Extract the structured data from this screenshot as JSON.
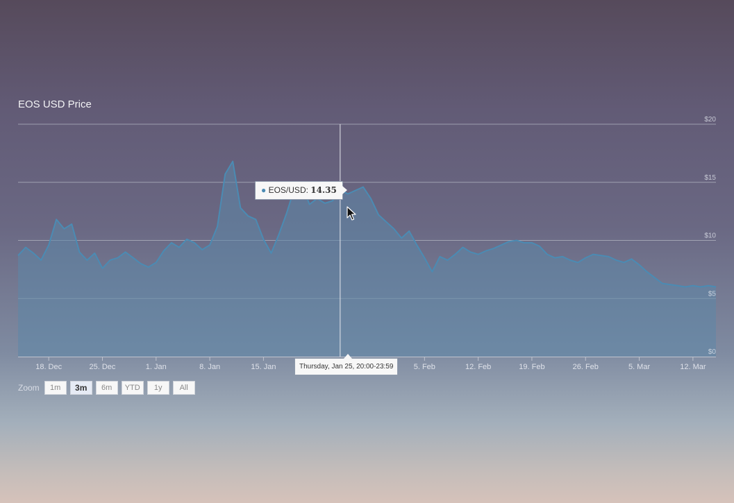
{
  "chart_data": {
    "type": "area",
    "title": "EOS USD Price",
    "series": [
      {
        "name": "EOS/USD",
        "points": [
          [
            "2017-12-14",
            8.7
          ],
          [
            "2017-12-15",
            9.4
          ],
          [
            "2017-12-16",
            8.9
          ],
          [
            "2017-12-17",
            8.3
          ],
          [
            "2017-12-18",
            9.6
          ],
          [
            "2017-12-19",
            11.8
          ],
          [
            "2017-12-20",
            11.0
          ],
          [
            "2017-12-21",
            11.4
          ],
          [
            "2017-12-22",
            9.0
          ],
          [
            "2017-12-23",
            8.3
          ],
          [
            "2017-12-24",
            8.9
          ],
          [
            "2017-12-25",
            7.6
          ],
          [
            "2017-12-26",
            8.3
          ],
          [
            "2017-12-27",
            8.5
          ],
          [
            "2017-12-28",
            9.0
          ],
          [
            "2017-12-29",
            8.5
          ],
          [
            "2017-12-30",
            8.0
          ],
          [
            "2017-12-31",
            7.7
          ],
          [
            "2018-01-01",
            8.1
          ],
          [
            "2018-01-02",
            9.1
          ],
          [
            "2018-01-03",
            9.8
          ],
          [
            "2018-01-04",
            9.4
          ],
          [
            "2018-01-05",
            10.1
          ],
          [
            "2018-01-06",
            9.8
          ],
          [
            "2018-01-07",
            9.2
          ],
          [
            "2018-01-08",
            9.6
          ],
          [
            "2018-01-09",
            11.2
          ],
          [
            "2018-01-10",
            15.7
          ],
          [
            "2018-01-11",
            16.8
          ],
          [
            "2018-01-12",
            12.8
          ],
          [
            "2018-01-13",
            12.1
          ],
          [
            "2018-01-14",
            11.8
          ],
          [
            "2018-01-15",
            10.1
          ],
          [
            "2018-01-16",
            8.9
          ],
          [
            "2018-01-17",
            10.5
          ],
          [
            "2018-01-18",
            12.3
          ],
          [
            "2018-01-19",
            14.4
          ],
          [
            "2018-01-20",
            14.8
          ],
          [
            "2018-01-21",
            13.1
          ],
          [
            "2018-01-22",
            13.6
          ],
          [
            "2018-01-23",
            13.2
          ],
          [
            "2018-01-24",
            13.4
          ],
          [
            "2018-01-25",
            14.35
          ],
          [
            "2018-01-26",
            14.0
          ],
          [
            "2018-01-27",
            14.3
          ],
          [
            "2018-01-28",
            14.6
          ],
          [
            "2018-01-29",
            13.6
          ],
          [
            "2018-01-30",
            12.2
          ],
          [
            "2018-01-31",
            11.6
          ],
          [
            "2018-02-01",
            11.0
          ],
          [
            "2018-02-02",
            10.2
          ],
          [
            "2018-02-03",
            10.8
          ],
          [
            "2018-02-04",
            9.6
          ],
          [
            "2018-02-05",
            8.5
          ],
          [
            "2018-02-06",
            7.3
          ],
          [
            "2018-02-07",
            8.6
          ],
          [
            "2018-02-08",
            8.3
          ],
          [
            "2018-02-09",
            8.8
          ],
          [
            "2018-02-10",
            9.4
          ],
          [
            "2018-02-11",
            9.0
          ],
          [
            "2018-02-12",
            8.8
          ],
          [
            "2018-02-13",
            9.1
          ],
          [
            "2018-02-14",
            9.3
          ],
          [
            "2018-02-15",
            9.6
          ],
          [
            "2018-02-16",
            9.9
          ],
          [
            "2018-02-17",
            10.0
          ],
          [
            "2018-02-18",
            9.8
          ],
          [
            "2018-02-19",
            9.8
          ],
          [
            "2018-02-20",
            9.5
          ],
          [
            "2018-02-21",
            8.8
          ],
          [
            "2018-02-22",
            8.5
          ],
          [
            "2018-02-23",
            8.6
          ],
          [
            "2018-02-24",
            8.3
          ],
          [
            "2018-02-25",
            8.1
          ],
          [
            "2018-02-26",
            8.5
          ],
          [
            "2018-02-27",
            8.8
          ],
          [
            "2018-02-28",
            8.7
          ],
          [
            "2018-03-01",
            8.6
          ],
          [
            "2018-03-02",
            8.3
          ],
          [
            "2018-03-03",
            8.1
          ],
          [
            "2018-03-04",
            8.4
          ],
          [
            "2018-03-05",
            7.9
          ],
          [
            "2018-03-06",
            7.3
          ],
          [
            "2018-03-07",
            6.8
          ],
          [
            "2018-03-08",
            6.3
          ],
          [
            "2018-03-09",
            6.2
          ],
          [
            "2018-03-10",
            6.1
          ],
          [
            "2018-03-11",
            6.0
          ],
          [
            "2018-03-12",
            6.1
          ],
          [
            "2018-03-13",
            6.0
          ],
          [
            "2018-03-14",
            6.1
          ],
          [
            "2018-03-15",
            6.0
          ]
        ]
      }
    ],
    "x_ticks": [
      {
        "label": "18. Dec",
        "date": "2017-12-18"
      },
      {
        "label": "25. Dec",
        "date": "2017-12-25"
      },
      {
        "label": "1. Jan",
        "date": "2018-01-01"
      },
      {
        "label": "8. Jan",
        "date": "2018-01-08"
      },
      {
        "label": "15. Jan",
        "date": "2018-01-15"
      },
      {
        "label": "5. Feb",
        "date": "2018-02-05"
      },
      {
        "label": "12. Feb",
        "date": "2018-02-12"
      },
      {
        "label": "19. Feb",
        "date": "2018-02-19"
      },
      {
        "label": "26. Feb",
        "date": "2018-02-26"
      },
      {
        "label": "5. Mar",
        "date": "2018-03-05"
      },
      {
        "label": "12. Mar",
        "date": "2018-03-12"
      }
    ],
    "y_ticks": [
      {
        "label": "$0",
        "value": 0
      },
      {
        "label": "$5",
        "value": 5
      },
      {
        "label": "$10",
        "value": 10
      },
      {
        "label": "$15",
        "value": 15
      },
      {
        "label": "$20",
        "value": 20
      }
    ],
    "xlim": [
      "2017-12-14",
      "2018-03-15"
    ],
    "ylim": [
      0,
      20
    ],
    "grid": true,
    "crosshair_date": "2018-01-25",
    "colors": {
      "line": "#4b8bb3",
      "area": "#5d86a8",
      "grid": "#b8bac6",
      "tick_label": "#dfe2ea"
    }
  },
  "tooltip": {
    "series_name": "EOS/USD",
    "separator": ":",
    "value": "14.35",
    "date_label": "Thursday, Jan 25, 20:00-23:59"
  },
  "zoom": {
    "label": "Zoom",
    "buttons": [
      {
        "label": "1m",
        "active": false
      },
      {
        "label": "3m",
        "active": true
      },
      {
        "label": "6m",
        "active": false
      },
      {
        "label": "YTD",
        "active": false
      },
      {
        "label": "1y",
        "active": false
      },
      {
        "label": "All",
        "active": false
      }
    ]
  }
}
